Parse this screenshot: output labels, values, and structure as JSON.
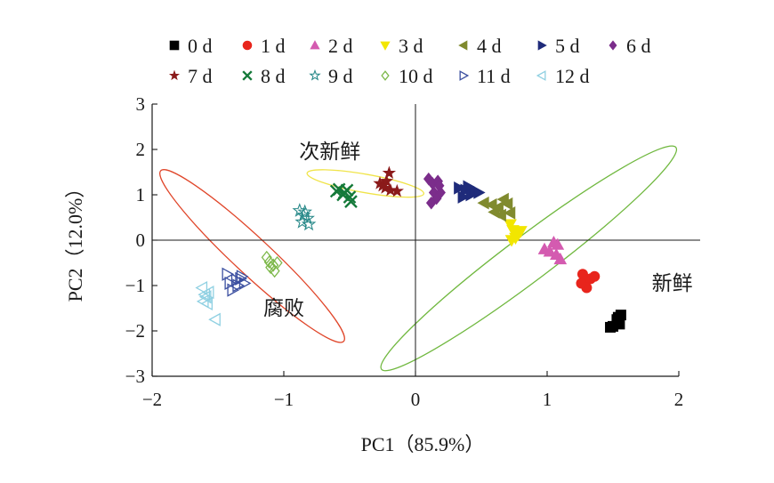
{
  "chart_data": {
    "type": "scatter",
    "xlabel": "PC1（85.9%）",
    "ylabel": "PC2（12.0%）",
    "xlim": [
      -2,
      2
    ],
    "ylim": [
      -3,
      3
    ],
    "xticks": [
      "−2",
      "−1",
      "0",
      "1",
      "2"
    ],
    "yticks": [
      "3",
      "2",
      "1",
      "0",
      "−1",
      "−2",
      "−3"
    ],
    "legend_position": "top",
    "grid": false,
    "series": [
      {
        "name": "0 d",
        "marker": "square",
        "color": "#000000",
        "filled": true,
        "points": [
          [
            1.5,
            -1.9
          ],
          [
            1.55,
            -1.85
          ],
          [
            1.56,
            -1.65
          ],
          [
            1.54,
            -1.7
          ],
          [
            1.48,
            -1.92
          ],
          [
            1.53,
            -1.75
          ]
        ]
      },
      {
        "name": "1 d",
        "marker": "circle",
        "color": "#e8251c",
        "filled": true,
        "points": [
          [
            1.27,
            -0.75
          ],
          [
            1.33,
            -0.85
          ],
          [
            1.29,
            -0.9
          ],
          [
            1.3,
            -1.05
          ],
          [
            1.36,
            -0.8
          ],
          [
            1.26,
            -0.95
          ]
        ]
      },
      {
        "name": "2 d",
        "marker": "triangle-up",
        "color": "#d45bb0",
        "filled": true,
        "points": [
          [
            0.98,
            -0.2
          ],
          [
            1.05,
            -0.05
          ],
          [
            1.07,
            -0.32
          ],
          [
            1.1,
            -0.42
          ],
          [
            1.02,
            -0.25
          ],
          [
            1.08,
            -0.1
          ]
        ]
      },
      {
        "name": "3 d",
        "marker": "triangle-down",
        "color": "#f2e600",
        "filled": true,
        "points": [
          [
            0.72,
            0.35
          ],
          [
            0.74,
            0.22
          ],
          [
            0.76,
            0.05
          ],
          [
            0.78,
            0.12
          ],
          [
            0.8,
            0.2
          ],
          [
            0.73,
            0.0
          ]
        ]
      },
      {
        "name": "4 d",
        "marker": "triangle-left",
        "color": "#808a2e",
        "filled": true,
        "points": [
          [
            0.52,
            0.82
          ],
          [
            0.58,
            0.78
          ],
          [
            0.63,
            0.72
          ],
          [
            0.67,
            0.9
          ],
          [
            0.6,
            0.62
          ],
          [
            0.7,
            0.8
          ],
          [
            0.65,
            0.55
          ],
          [
            0.72,
            0.6
          ]
        ]
      },
      {
        "name": "5 d",
        "marker": "triangle-right",
        "color": "#1f2b7a",
        "filled": true,
        "points": [
          [
            0.33,
            1.15
          ],
          [
            0.38,
            1.1
          ],
          [
            0.36,
            0.95
          ],
          [
            0.42,
            1.0
          ],
          [
            0.45,
            1.08
          ],
          [
            0.4,
            1.18
          ],
          [
            0.48,
            1.05
          ]
        ]
      },
      {
        "name": "6 d",
        "marker": "diamond",
        "color": "#7b2d8b",
        "filled": true,
        "points": [
          [
            0.1,
            1.35
          ],
          [
            0.13,
            1.25
          ],
          [
            0.17,
            1.3
          ],
          [
            0.14,
            1.05
          ],
          [
            0.19,
            1.05
          ],
          [
            0.16,
            0.92
          ],
          [
            0.12,
            0.82
          ],
          [
            0.18,
            1.2
          ]
        ]
      },
      {
        "name": "7 d",
        "marker": "star",
        "color": "#8b1a1a",
        "filled": true,
        "points": [
          [
            -0.27,
            1.25
          ],
          [
            -0.23,
            1.15
          ],
          [
            -0.2,
            1.48
          ],
          [
            -0.19,
            1.1
          ],
          [
            -0.14,
            1.08
          ],
          [
            -0.22,
            1.3
          ],
          [
            -0.25,
            1.2
          ]
        ]
      },
      {
        "name": "8 d",
        "marker": "x",
        "color": "#157a3a",
        "filled": true,
        "points": [
          [
            -0.6,
            1.08
          ],
          [
            -0.55,
            1.0
          ],
          [
            -0.52,
            1.1
          ],
          [
            -0.5,
            0.95
          ],
          [
            -0.49,
            0.85
          ],
          [
            -0.58,
            1.12
          ],
          [
            -0.54,
            1.05
          ]
        ]
      },
      {
        "name": "9 d",
        "marker": "star",
        "color": "#2a8a8a",
        "filled": false,
        "points": [
          [
            -0.88,
            0.65
          ],
          [
            -0.85,
            0.55
          ],
          [
            -0.82,
            0.48
          ],
          [
            -0.86,
            0.4
          ],
          [
            -0.84,
            0.62
          ],
          [
            -0.81,
            0.35
          ]
        ]
      },
      {
        "name": "10 d",
        "marker": "diamond",
        "color": "#7db84a",
        "filled": false,
        "points": [
          [
            -1.13,
            -0.38
          ],
          [
            -1.11,
            -0.48
          ],
          [
            -1.1,
            -0.6
          ],
          [
            -1.08,
            -0.55
          ],
          [
            -1.05,
            -0.5
          ],
          [
            -1.07,
            -0.68
          ]
        ]
      },
      {
        "name": "11 d",
        "marker": "triangle-right",
        "color": "#3b4fa0",
        "filled": false,
        "points": [
          [
            -1.43,
            -0.75
          ],
          [
            -1.41,
            -0.95
          ],
          [
            -1.39,
            -1.1
          ],
          [
            -1.36,
            -0.88
          ],
          [
            -1.35,
            -1.0
          ],
          [
            -1.33,
            -0.85
          ],
          [
            -1.3,
            -0.95
          ],
          [
            -1.32,
            -0.8
          ]
        ]
      },
      {
        "name": "12 d",
        "marker": "triangle-left",
        "color": "#8fd0e2",
        "filled": false,
        "points": [
          [
            -1.62,
            -1.05
          ],
          [
            -1.6,
            -1.2
          ],
          [
            -1.61,
            -1.35
          ],
          [
            -1.58,
            -1.4
          ],
          [
            -1.59,
            -1.25
          ],
          [
            -1.52,
            -1.75
          ],
          [
            -1.57,
            -1.15
          ]
        ]
      }
    ],
    "groups": [
      {
        "label": "新鲜",
        "color": "#70b83f",
        "center": [
          0.86,
          -0.4
        ],
        "semi_axes": [
          1.4,
          0.17
        ],
        "angle_deg": -37
      },
      {
        "label": "次新鲜",
        "color": "#f0e44a",
        "center": [
          -0.38,
          1.25
        ],
        "semi_axes": [
          0.45,
          0.07
        ],
        "angle_deg": 10
      },
      {
        "label": "腐败",
        "color": "#e0462a",
        "center": [
          -1.24,
          -0.35
        ],
        "semi_axes": [
          0.95,
          0.14
        ],
        "angle_deg": 43
      }
    ],
    "annotations": [
      {
        "text": "新鲜",
        "x": 1.95,
        "y": -1.1
      },
      {
        "text": "次新鲜",
        "x": -0.65,
        "y": 1.8
      },
      {
        "text": "腐败",
        "x": -1.0,
        "y": -1.65
      }
    ]
  }
}
